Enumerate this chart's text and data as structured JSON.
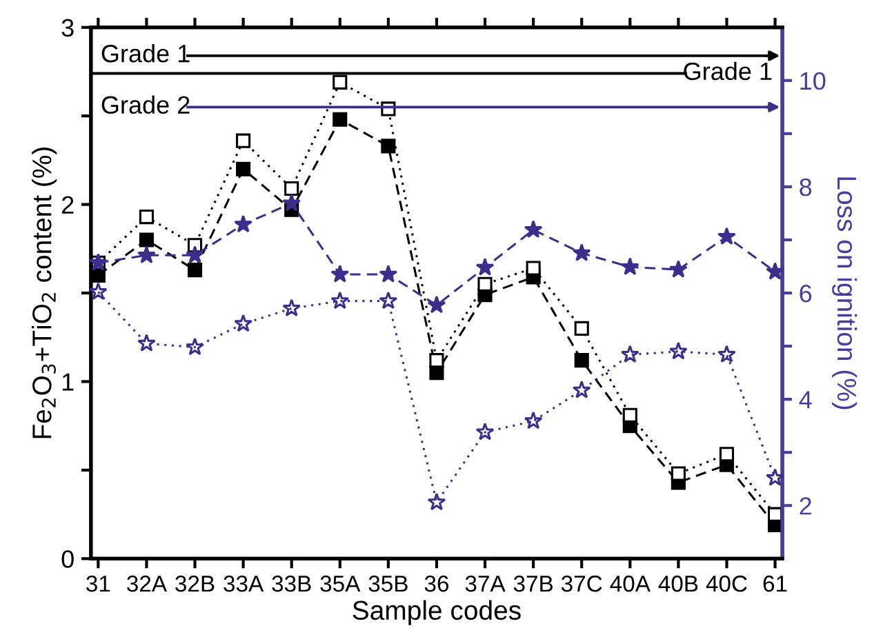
{
  "chart_data": {
    "type": "line",
    "xlabel": "Sample codes",
    "ylabel": "Fe$_{2}$O$_{3}$+TiO$_{2}$ content (%)",
    "y2label": "Loss on ignition (%)",
    "categories": [
      "31",
      "32A",
      "32B",
      "33A",
      "33B",
      "35A",
      "35B",
      "36",
      "37A",
      "37B",
      "37C",
      "40A",
      "40B",
      "40C",
      "61"
    ],
    "series": [
      {
        "color": "#000000",
        "marker": "square",
        "line_style": "dashed",
        "values": [
          1.6,
          1.8,
          1.63,
          2.2,
          1.97,
          2.48,
          2.33,
          1.05,
          1.49,
          1.59,
          1.12,
          0.75,
          0.43,
          0.53,
          0.19
        ]
      },
      {
        "color": "#000000",
        "marker": "square",
        "line_style": "dotted",
        "values": [
          1.67,
          1.93,
          1.77,
          2.36,
          2.09,
          2.69,
          2.54,
          1.12,
          1.55,
          1.64,
          1.3,
          0.81,
          0.48,
          0.59,
          0.25
        ]
      },
      {
        "color": "#3d2e8c",
        "marker": "star",
        "line_style": "dashed",
        "axis": "y2",
        "values": [
          6.57,
          6.71,
          6.71,
          7.29,
          7.69,
          6.35,
          6.35,
          5.77,
          6.48,
          7.19,
          6.75,
          6.49,
          6.44,
          7.06,
          6.4
        ]
      },
      {
        "color": "#3d2e8c",
        "marker": "star",
        "line_style": "dotted",
        "axis": "y2",
        "values": [
          6.02,
          5.05,
          4.98,
          5.42,
          5.71,
          5.85,
          5.85,
          2.06,
          3.38,
          3.59,
          4.17,
          4.84,
          4.9,
          4.84,
          2.52
        ]
      }
    ],
    "ylim": [
      0,
      3
    ],
    "yticks": [
      0,
      {
        "value": 0.5,
        "label": null
      },
      1,
      {
        "value": 1.5,
        "label": null
      },
      2,
      {
        "value": 2.5,
        "label": null
      },
      3
    ],
    "y2lim": [
      1,
      11
    ],
    "y2ticks": [
      2,
      {
        "value": 3,
        "label": null
      },
      4,
      {
        "value": 5,
        "label": null
      },
      6,
      {
        "value": 7,
        "label": null
      },
      8,
      {
        "value": 9,
        "label": null
      },
      10
    ],
    "ref_lines": [
      {
        "axis": "y",
        "value": 2.84,
        "label": "Grade 1",
        "color": "#000000"
      },
      {
        "axis": "y",
        "value": 2.74,
        "label": "Grade 1",
        "color": "#000000"
      },
      {
        "axis": "y2",
        "value": 9.5,
        "label": "Grade 2",
        "color": "#3d2e8c"
      }
    ],
    "grid": false,
    "legend": false
  }
}
